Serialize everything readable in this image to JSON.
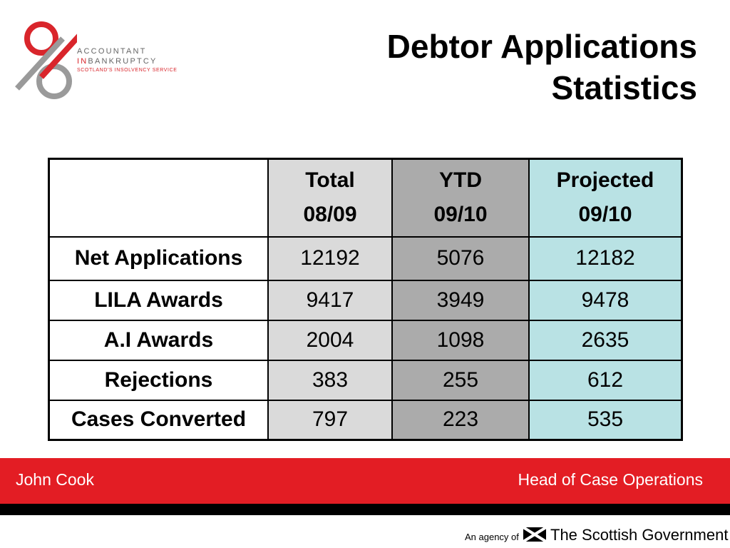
{
  "logo": {
    "line1": "ACCOUNTANT",
    "line2_accent": "IN",
    "line2_rest": "BANKRUPTCY",
    "line3": "SCOTLAND'S INSOLVENCY SERVICE"
  },
  "slide": {
    "title_line1": "Debtor Applications",
    "title_line2": "Statistics"
  },
  "table": {
    "headers": [
      {
        "line1": "Total",
        "line2": "08/09"
      },
      {
        "line1": "YTD",
        "line2": "09/10"
      },
      {
        "line1": "Projected",
        "line2": "09/10"
      }
    ],
    "rows": [
      {
        "label": "Net Applications",
        "values": [
          "12192",
          "5076",
          "12182"
        ]
      },
      {
        "label": "LILA Awards",
        "values": [
          "9417",
          "3949",
          "9478"
        ]
      },
      {
        "label": "A.I Awards",
        "values": [
          "2004",
          "1098",
          "2635"
        ]
      },
      {
        "label": "Rejections",
        "values": [
          "383",
          "255",
          "612"
        ]
      },
      {
        "label": "Cases Converted",
        "values": [
          "797",
          "223",
          "535"
        ]
      }
    ]
  },
  "footer": {
    "presenter": "John Cook",
    "role": "Head of Case Operations",
    "agency_prefix": "An agency of",
    "agency_name": "The Scottish Government"
  },
  "colors": {
    "brand_red": "#e31d24",
    "col_total": "#dadada",
    "col_ytd": "#ababab",
    "col_projected": "#b9e2e4"
  }
}
